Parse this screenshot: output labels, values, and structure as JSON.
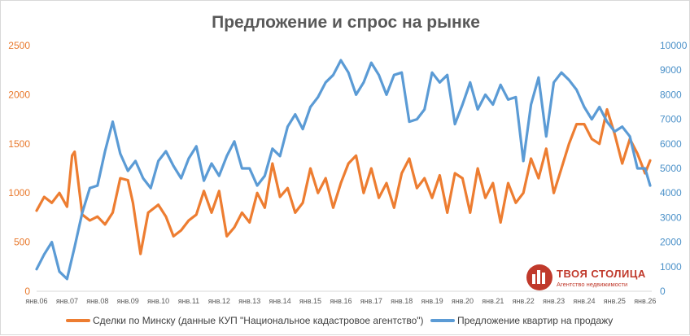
{
  "chart_data": {
    "type": "line",
    "title": "Предложение и спрос на рынке",
    "x_ticks": [
      "янв.06",
      "янв.07",
      "янв.08",
      "янв.09",
      "янв.10",
      "янв.11",
      "янв.12",
      "янв.13",
      "янв.14",
      "янв.15",
      "янв.16",
      "янв.17",
      "янв.18",
      "янв.19",
      "янв.20",
      "янв.21",
      "янв.22",
      "янв.23",
      "янв.24",
      "янв.25",
      "янв.26"
    ],
    "x_start": "2006-01",
    "x_end": "2026-03",
    "y_left": {
      "ticks": [
        "0",
        "500",
        "1000",
        "1500",
        "2000",
        "2500"
      ],
      "range": [
        0,
        2500
      ]
    },
    "y_right": {
      "ticks": [
        "0",
        "1000",
        "2000",
        "3000",
        "4000",
        "5000",
        "6000",
        "7000",
        "8000",
        "9000",
        "10000"
      ],
      "range": [
        0,
        10000
      ]
    },
    "grid": false,
    "legend_position": "bottom",
    "series": [
      {
        "name": "Сделки по Минску (данные КУП \"Национальное кадастровое агентство\")",
        "axis": "left",
        "color": "#ed7d31",
        "x": [
          "2006-01",
          "2006-04",
          "2006-07",
          "2006-10",
          "2007-01",
          "2007-03",
          "2007-04",
          "2007-07",
          "2007-10",
          "2008-01",
          "2008-04",
          "2008-07",
          "2008-10",
          "2009-01",
          "2009-03",
          "2009-06",
          "2009-09",
          "2010-01",
          "2010-04",
          "2010-07",
          "2010-10",
          "2011-01",
          "2011-04",
          "2011-07",
          "2011-10",
          "2012-01",
          "2012-04",
          "2012-07",
          "2012-10",
          "2013-01",
          "2013-04",
          "2013-07",
          "2013-10",
          "2014-01",
          "2014-04",
          "2014-07",
          "2014-10",
          "2015-01",
          "2015-04",
          "2015-07",
          "2015-10",
          "2016-01",
          "2016-04",
          "2016-07",
          "2016-10",
          "2017-01",
          "2017-04",
          "2017-07",
          "2017-10",
          "2018-01",
          "2018-04",
          "2018-07",
          "2018-10",
          "2019-01",
          "2019-04",
          "2019-07",
          "2019-10",
          "2020-01",
          "2020-04",
          "2020-07",
          "2020-10",
          "2021-01",
          "2021-04",
          "2021-07",
          "2021-10",
          "2022-01",
          "2022-04",
          "2022-07",
          "2022-10",
          "2023-01",
          "2023-04",
          "2023-07",
          "2023-10",
          "2024-01",
          "2024-04",
          "2024-07",
          "2024-10",
          "2025-01",
          "2025-04",
          "2025-07",
          "2025-10",
          "2026-01",
          "2026-03"
        ],
        "values": [
          820,
          960,
          900,
          1000,
          860,
          1380,
          1420,
          780,
          720,
          760,
          680,
          800,
          1150,
          1130,
          900,
          380,
          800,
          880,
          760,
          560,
          620,
          720,
          780,
          1020,
          800,
          1020,
          560,
          650,
          800,
          700,
          1000,
          850,
          1300,
          960,
          1050,
          800,
          900,
          1250,
          1000,
          1150,
          850,
          1100,
          1300,
          1380,
          1000,
          1250,
          950,
          1100,
          850,
          1200,
          1350,
          1050,
          1150,
          950,
          1180,
          800,
          1200,
          1150,
          800,
          1250,
          950,
          1100,
          700,
          1100,
          900,
          1000,
          1350,
          1150,
          1450,
          1000,
          1250,
          1500,
          1700,
          1700,
          1550,
          1500,
          1850,
          1600,
          1300,
          1550,
          1400,
          1200,
          1330
        ]
      },
      {
        "name": "Предложение квартир на продажу",
        "axis": "right",
        "color": "#5b9bd5",
        "x": [
          "2006-01",
          "2006-04",
          "2006-07",
          "2006-10",
          "2007-01",
          "2007-04",
          "2007-07",
          "2007-10",
          "2008-01",
          "2008-04",
          "2008-07",
          "2008-10",
          "2009-01",
          "2009-04",
          "2009-07",
          "2009-10",
          "2010-01",
          "2010-04",
          "2010-07",
          "2010-10",
          "2011-01",
          "2011-04",
          "2011-07",
          "2011-10",
          "2012-01",
          "2012-04",
          "2012-07",
          "2012-10",
          "2013-01",
          "2013-04",
          "2013-07",
          "2013-10",
          "2014-01",
          "2014-04",
          "2014-07",
          "2014-10",
          "2015-01",
          "2015-04",
          "2015-07",
          "2015-10",
          "2016-01",
          "2016-04",
          "2016-07",
          "2016-10",
          "2017-01",
          "2017-04",
          "2017-07",
          "2017-10",
          "2018-01",
          "2018-04",
          "2018-07",
          "2018-10",
          "2019-01",
          "2019-04",
          "2019-07",
          "2019-10",
          "2020-01",
          "2020-04",
          "2020-07",
          "2020-10",
          "2021-01",
          "2021-04",
          "2021-07",
          "2021-10",
          "2022-01",
          "2022-04",
          "2022-07",
          "2022-10",
          "2023-01",
          "2023-04",
          "2023-07",
          "2023-10",
          "2024-01",
          "2024-04",
          "2024-07",
          "2024-10",
          "2025-01",
          "2025-04",
          "2025-07",
          "2025-10",
          "2026-01",
          "2026-03"
        ],
        "values": [
          900,
          1500,
          2000,
          800,
          500,
          1800,
          3200,
          4200,
          4300,
          5700,
          6900,
          5600,
          4900,
          5300,
          4600,
          4200,
          5300,
          5700,
          5100,
          4600,
          5400,
          5900,
          4500,
          5200,
          4700,
          5500,
          6100,
          5000,
          5000,
          4300,
          4700,
          5800,
          5500,
          6700,
          7200,
          6600,
          7500,
          7900,
          8500,
          8800,
          9400,
          8900,
          8000,
          8500,
          9300,
          8800,
          8000,
          8800,
          8900,
          6900,
          7000,
          7400,
          8900,
          8500,
          8800,
          6800,
          7600,
          8500,
          7400,
          8000,
          7600,
          8400,
          7800,
          7900,
          5300,
          7600,
          8700,
          6300,
          8500,
          8900,
          8600,
          8200,
          7500,
          7000,
          7500,
          6900,
          6500,
          6700,
          6300,
          5000,
          5000,
          4300
        ]
      }
    ]
  },
  "legend": [
    {
      "label": "Сделки по Минску (данные КУП \"Национальное кадастровое агентство\")",
      "color": "#ed7d31"
    },
    {
      "label": "Предложение квартир на продажу",
      "color": "#5b9bd5"
    }
  ],
  "logo": {
    "name": "ТВОЯ СТОЛИЦА",
    "subtitle": "Агентство недвижимости",
    "color": "#c0392b"
  }
}
